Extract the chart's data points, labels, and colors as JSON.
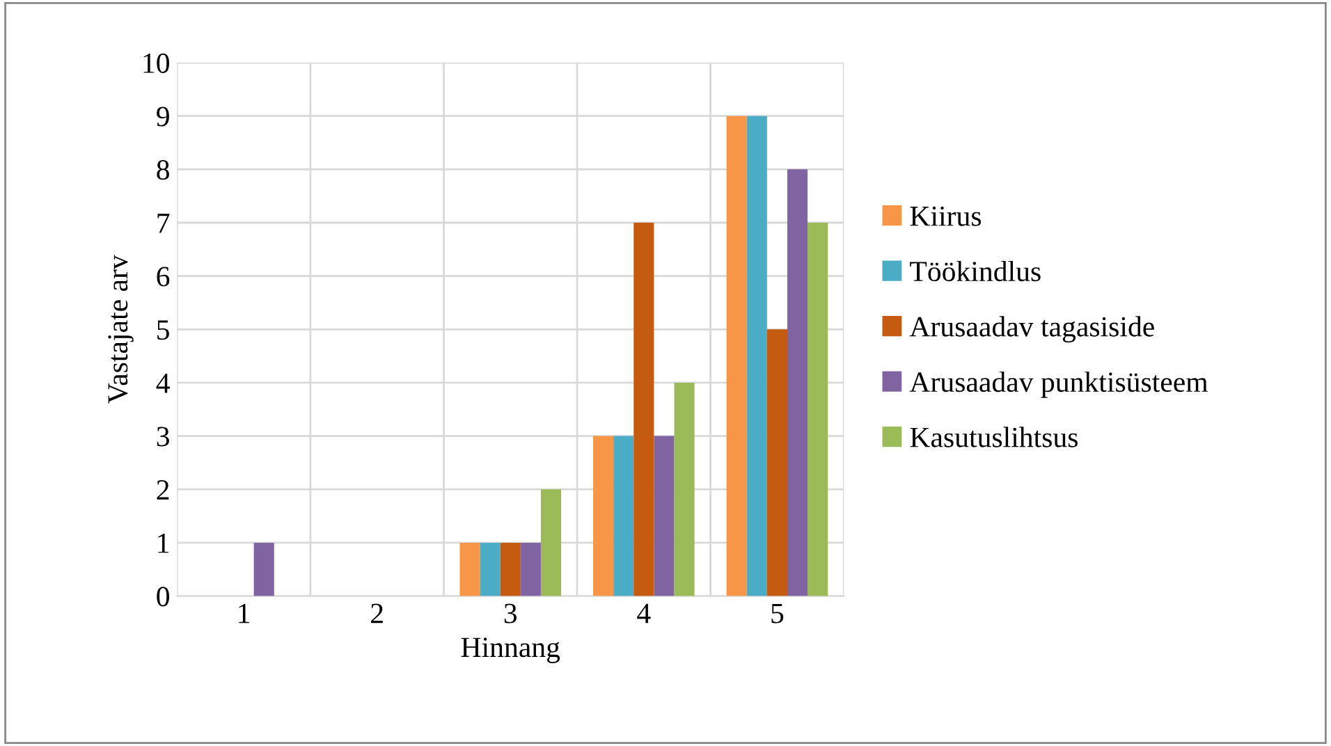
{
  "chart_data": {
    "type": "bar",
    "xlabel": "Hinnang",
    "ylabel": "Vastajate arv",
    "categories": [
      "1",
      "2",
      "3",
      "4",
      "5"
    ],
    "series": [
      {
        "name": "Kiirus",
        "color": "#f79646",
        "values": [
          0,
          0,
          1,
          3,
          9
        ]
      },
      {
        "name": "Töökindlus",
        "color": "#4bacc6",
        "values": [
          0,
          0,
          1,
          3,
          9
        ]
      },
      {
        "name": "Arusaadav tagasiside",
        "color": "#c55a11",
        "values": [
          0,
          0,
          1,
          7,
          5
        ]
      },
      {
        "name": "Arusaadav punktisüsteem",
        "color": "#8064a2",
        "values": [
          1,
          0,
          1,
          3,
          8
        ]
      },
      {
        "name": "Kasutuslihtsus",
        "color": "#9bbb59",
        "values": [
          0,
          0,
          2,
          4,
          7
        ]
      }
    ],
    "ylim": [
      0,
      10
    ],
    "yticks": [
      0,
      1,
      2,
      3,
      4,
      5,
      6,
      7,
      8,
      9,
      10
    ],
    "grid": true,
    "legend": "right"
  }
}
